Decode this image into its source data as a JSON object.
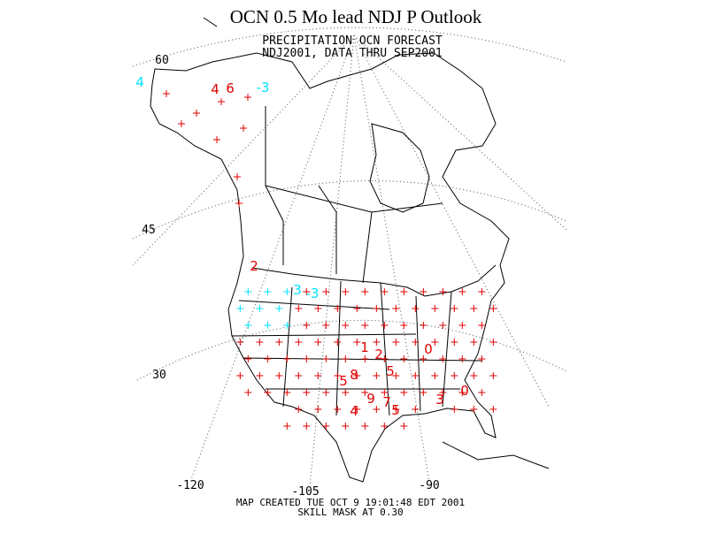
{
  "header": {
    "title": "OCN 0.5 Mo lead NDJ P Outlook"
  },
  "map": {
    "heading": [
      "PRECIPITATION OCN FORECAST",
      "NDJ2001, DATA THRU SEP2001"
    ],
    "lat_labels": [
      "60",
      "45",
      "30"
    ],
    "lon_labels": [
      "-120",
      "-105",
      "-90"
    ],
    "anomalies": [
      {
        "label": "4",
        "color": "#00e0ff"
      },
      {
        "label": "4",
        "color": "#e00000"
      },
      {
        "label": "6",
        "color": "#e00000"
      },
      {
        "label": "-3",
        "color": "#00e0ff"
      },
      {
        "label": "2",
        "color": "#e00000"
      },
      {
        "label": "3",
        "color": "#00e0ff"
      },
      {
        "label": "-3",
        "color": "#00e0ff"
      },
      {
        "label": "1",
        "color": "#e00000"
      },
      {
        "label": "2",
        "color": "#e00000"
      },
      {
        "label": "0",
        "color": "#e00000"
      },
      {
        "label": "5",
        "color": "#e00000"
      },
      {
        "label": "8",
        "color": "#e00000"
      },
      {
        "label": "5",
        "color": "#e00000"
      },
      {
        "label": "9",
        "color": "#e00000"
      },
      {
        "label": "7",
        "color": "#e00000"
      },
      {
        "label": "5",
        "color": "#e00000"
      },
      {
        "label": "4",
        "color": "#e00000"
      },
      {
        "label": "3",
        "color": "#e00000"
      },
      {
        "label": "0",
        "color": "#e00000"
      }
    ],
    "footer": [
      "MAP CREATED TUE OCT 9 19:01:48 EDT 2001",
      "SKILL MASK AT 0.30"
    ]
  }
}
